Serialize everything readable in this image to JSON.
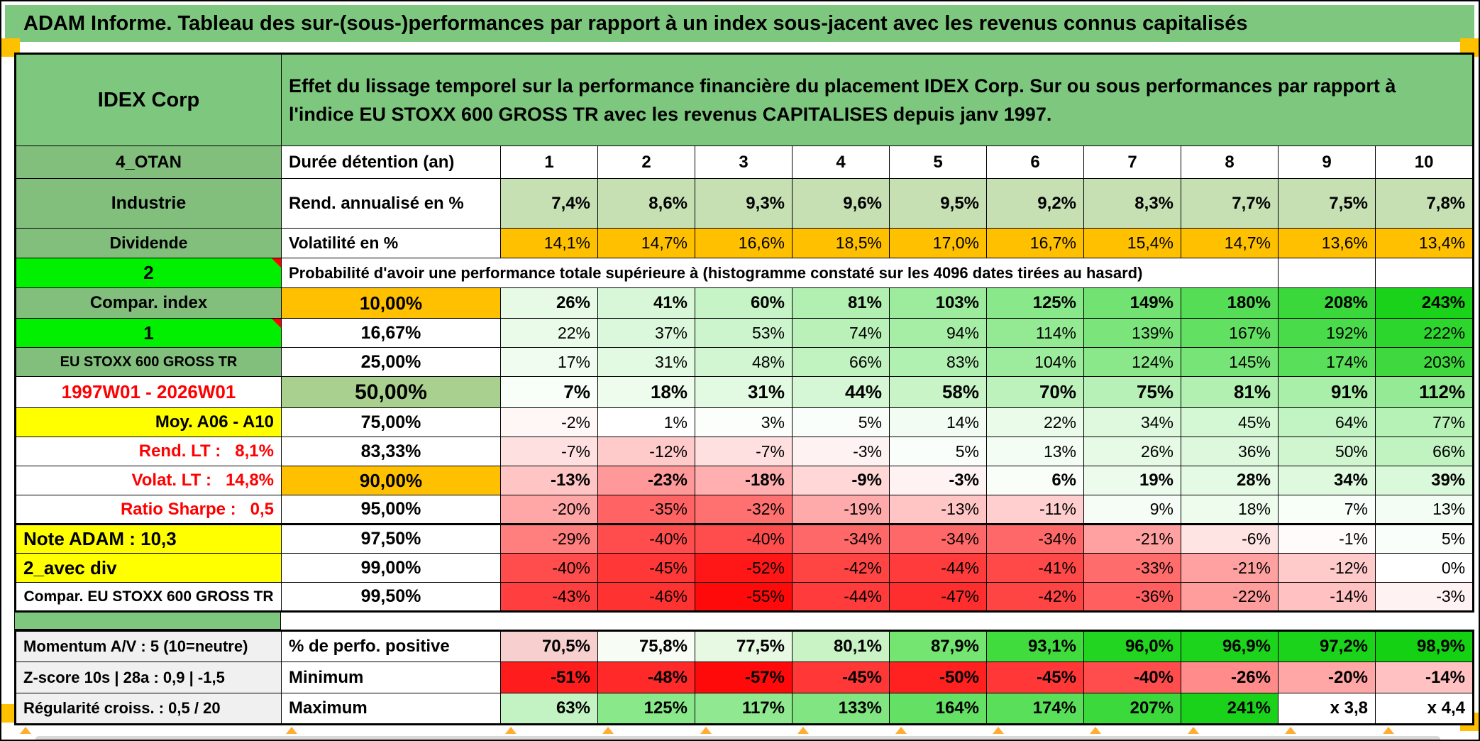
{
  "title_bar": {
    "text": "ADAM Informe. Tableau des sur-(sous-)performances par rapport à un index sous-jacent avec les revenus connus capitalisés"
  },
  "header": {
    "name": "IDEX Corp",
    "description": "Effet du lissage temporel sur la performance financière du placement IDEX Corp. Sur ou sous performances par rapport à l'indice EU STOXX 600 GROSS TR avec les revenus CAPITALISES depuis janv 1997."
  },
  "columns": [
    "1",
    "2",
    "3",
    "4",
    "5",
    "6",
    "7",
    "8",
    "9",
    "10"
  ],
  "duree_row": {
    "label": "4_OTAN",
    "metric": "Durée détention (an)"
  },
  "rend_row": {
    "label": "Industrie",
    "metric": "Rend. annualisé en %",
    "values": [
      "7,4%",
      "8,6%",
      "9,3%",
      "9,6%",
      "9,5%",
      "9,2%",
      "8,3%",
      "7,7%",
      "7,5%",
      "7,8%"
    ],
    "cell_bg": "#C6E0B4"
  },
  "volat_row": {
    "label": "Dividende",
    "metric": "Volatilité en %",
    "values": [
      "14,1%",
      "14,7%",
      "16,6%",
      "18,5%",
      "17,0%",
      "16,7%",
      "15,4%",
      "14,7%",
      "13,6%",
      "13,4%"
    ],
    "cell_bg": "#FFC000"
  },
  "proba_row": {
    "label": "2",
    "text": "Probabilité d'avoir une performance totale supérieure à (histogramme constaté sur les 4096 dates tirées au hasard)"
  },
  "matrix_rows": [
    {
      "label": "Compar. index",
      "label_bg": "#82BF7D",
      "label_color": "#000000",
      "label_align": "center",
      "label_size": 24,
      "marker": false,
      "threshold": "10,00%",
      "threshold_bg": "#FFC000",
      "threshold_size": 26,
      "bold": true,
      "values": [
        "26%",
        "41%",
        "60%",
        "81%",
        "103%",
        "125%",
        "149%",
        "180%",
        "208%",
        "243%"
      ],
      "colors": [
        "#E6FAE6",
        "#D8F7D8",
        "#C6F4C6",
        "#B2F0B2",
        "#9DEC9D",
        "#89E889",
        "#72E372",
        "#55DE55",
        "#3AD83A",
        "#19D219"
      ]
    },
    {
      "label": "1",
      "label_bg": "#00F000",
      "label_color": "#000000",
      "label_align": "center",
      "label_size": 26,
      "marker": true,
      "threshold": "16,67%",
      "threshold_bg": "#FFFFFF",
      "threshold_size": 25,
      "bold": false,
      "values": [
        "22%",
        "37%",
        "53%",
        "74%",
        "94%",
        "114%",
        "139%",
        "167%",
        "192%",
        "222%"
      ],
      "colors": [
        "#EAFBEA",
        "#DCF8DC",
        "#CDF5CD",
        "#B9F1B9",
        "#A6EEA6",
        "#93EA93",
        "#7BE57B",
        "#61E061",
        "#49DB49",
        "#2DD62D"
      ]
    },
    {
      "label": "EU STOXX 600 GROSS TR",
      "label_bg": "#82BF7D",
      "label_color": "#000000",
      "label_align": "center",
      "label_size": 20,
      "marker": false,
      "threshold": "25,00%",
      "threshold_bg": "#FFFFFF",
      "threshold_size": 25,
      "bold": false,
      "values": [
        "17%",
        "31%",
        "48%",
        "66%",
        "83%",
        "104%",
        "124%",
        "145%",
        "174%",
        "203%"
      ],
      "colors": [
        "#EFFCEF",
        "#E2F9E2",
        "#D1F6D1",
        "#C0F3C0",
        "#B0F0B0",
        "#9DEC9D",
        "#8AE88A",
        "#76E476",
        "#5ADF5A",
        "#3FD93F"
      ]
    },
    {
      "label": "1997W01 - 2026W01",
      "label_bg": "#FFFFFF",
      "label_color": "#FF0000",
      "label_align": "center",
      "label_size": 26,
      "marker": false,
      "threshold": "50,00%",
      "threshold_bg": "#A9D08F",
      "threshold_size": 30,
      "bold": true,
      "size": 26,
      "values": [
        "7%",
        "18%",
        "31%",
        "44%",
        "58%",
        "70%",
        "75%",
        "81%",
        "91%",
        "112%"
      ],
      "colors": [
        "#F8FEF8",
        "#EEFCEE",
        "#E2F9E2",
        "#D5F7D5",
        "#C8F4C8",
        "#BDF2BD",
        "#B8F1B8",
        "#B2F0B2",
        "#A9EEA9",
        "#95EA95"
      ]
    },
    {
      "label": "Moy. A06 - A10",
      "label_bg": "#FFFF00",
      "label_color": "#000000",
      "label_align": "right",
      "label_size": 24,
      "marker": false,
      "threshold": "75,00%",
      "threshold_bg": "#FFFFFF",
      "threshold_size": 25,
      "bold": false,
      "values": [
        "-2%",
        "1%",
        "3%",
        "5%",
        "14%",
        "22%",
        "34%",
        "45%",
        "64%",
        "77%"
      ],
      "colors": [
        "#FFF6F6",
        "#FEFFFE",
        "#FCFEFC",
        "#FAFEFA",
        "#F2FCF2",
        "#EAFBEA",
        "#DFF9DF",
        "#D4F7D4",
        "#C2F3C2",
        "#B6F1B6"
      ]
    },
    {
      "label": "Rend. LT :   8,1%",
      "label_bg": "#FFFFFF",
      "label_color": "#FF0000",
      "label_align": "right",
      "label_size": 24,
      "marker": false,
      "threshold": "83,33%",
      "threshold_bg": "#FFFFFF",
      "threshold_size": 25,
      "bold": false,
      "values": [
        "-7%",
        "-12%",
        "-7%",
        "-3%",
        "5%",
        "13%",
        "26%",
        "36%",
        "50%",
        "66%"
      ],
      "colors": [
        "#FFE0E0",
        "#FFCACA",
        "#FFE0E0",
        "#FFF2F2",
        "#FAFEFA",
        "#F3FDF3",
        "#E6FAE6",
        "#DDF8DD",
        "#D0F6D0",
        "#C0F3C0"
      ]
    },
    {
      "label": "Volat. LT :   14,8%",
      "label_bg": "#FFFFFF",
      "label_color": "#FF0000",
      "label_align": "right",
      "label_size": 24,
      "marker": false,
      "threshold": "90,00%",
      "threshold_bg": "#FFC000",
      "threshold_size": 26,
      "bold": true,
      "values": [
        "-13%",
        "-23%",
        "-18%",
        "-9%",
        "-3%",
        "6%",
        "19%",
        "28%",
        "34%",
        "39%"
      ],
      "colors": [
        "#FFC5C5",
        "#FF9999",
        "#FFAFAF",
        "#FFD7D7",
        "#FFF2F2",
        "#F9FEF9",
        "#EDFBED",
        "#E5FAE5",
        "#DFF9DF",
        "#DAF8DA"
      ]
    },
    {
      "label": "Ratio Sharpe :   0,5",
      "label_bg": "#FFFFFF",
      "label_color": "#FF0000",
      "label_align": "right",
      "label_size": 24,
      "marker": false,
      "threshold": "95,00%",
      "threshold_bg": "#FFFFFF",
      "threshold_size": 25,
      "bold": false,
      "values": [
        "-20%",
        "-35%",
        "-32%",
        "-19%",
        "-13%",
        "-11%",
        "9%",
        "18%",
        "7%",
        "13%"
      ],
      "colors": [
        "#FFA6A6",
        "#FF6363",
        "#FF7070",
        "#FFAAAA",
        "#FFC5C5",
        "#FFCECE",
        "#F6FDF6",
        "#EEFCEE",
        "#F8FEF8",
        "#F3FDF3"
      ]
    },
    {
      "label": "Note ADAM : 10,3",
      "label_bg": "#FFFF00",
      "label_color": "#000000",
      "label_align": "left",
      "label_size": 26,
      "marker": false,
      "threshold": "97,50%",
      "threshold_bg": "#FFFFFF",
      "threshold_size": 25,
      "bold": false,
      "thick_top": true,
      "values": [
        "-29%",
        "-40%",
        "-40%",
        "-34%",
        "-34%",
        "-34%",
        "-21%",
        "-6%",
        "-1%",
        "5%"
      ],
      "colors": [
        "#FF7E7E",
        "#FF4D4D",
        "#FF4D4D",
        "#FF6868",
        "#FF6868",
        "#FF6868",
        "#FFA1A1",
        "#FFE4E4",
        "#FFFBFB",
        "#FAFEFA"
      ]
    },
    {
      "label": "2_avec div",
      "label_bg": "#FFFF00",
      "label_color": "#000000",
      "label_align": "left",
      "label_size": 26,
      "marker": false,
      "threshold": "99,00%",
      "threshold_bg": "#FFFFFF",
      "threshold_size": 25,
      "bold": false,
      "values": [
        "-40%",
        "-45%",
        "-52%",
        "-42%",
        "-44%",
        "-41%",
        "-33%",
        "-21%",
        "-12%",
        "0%"
      ],
      "colors": [
        "#FF4D4D",
        "#FF3737",
        "#FF1717",
        "#FF4444",
        "#FF3B3B",
        "#FF4848",
        "#FF6C6C",
        "#FFA1A1",
        "#FFCACA",
        "#FFFFFF"
      ]
    },
    {
      "label": "Compar. EU STOXX 600 GROSS TR",
      "label_bg": "#FFFFFF",
      "label_color": "#000000",
      "label_align": "center",
      "label_size": 21,
      "marker": false,
      "threshold": "99,50%",
      "threshold_bg": "#FFFFFF",
      "threshold_size": 25,
      "bold": false,
      "values": [
        "-43%",
        "-46%",
        "-55%",
        "-44%",
        "-47%",
        "-42%",
        "-36%",
        "-22%",
        "-14%",
        "-3%"
      ],
      "colors": [
        "#FF3F3F",
        "#FF3232",
        "#FF0A0A",
        "#FF3B3B",
        "#FF2E2E",
        "#FF4444",
        "#FF5F5F",
        "#FF9D9D",
        "#FFC1C1",
        "#FFF2F2"
      ]
    }
  ],
  "bottom_rows": [
    {
      "label": "Momentum A/V : 5 (10=neutre)",
      "metric": "% de perfo. positive",
      "values": [
        "70,5%",
        "75,8%",
        "77,5%",
        "80,1%",
        "87,9%",
        "93,1%",
        "96,0%",
        "96,9%",
        "97,2%",
        "98,9%"
      ],
      "colors": [
        "#F8CFCF",
        "#F7FCF5",
        "#E7F8E3",
        "#C9F2C5",
        "#74E570",
        "#40DC3E",
        "#22D520",
        "#1DD41C",
        "#1BD31A",
        "#14D213"
      ]
    },
    {
      "label": "Z-score 10s | 28a : 0,9 | -1,5",
      "metric": "Minimum",
      "values": [
        "-51%",
        "-48%",
        "-57%",
        "-45%",
        "-50%",
        "-45%",
        "-40%",
        "-26%",
        "-20%",
        "-14%"
      ],
      "colors": [
        "#FF1C1C",
        "#FF2929",
        "#FF0A0A",
        "#FF3737",
        "#FF2020",
        "#FF3737",
        "#FF4D4D",
        "#FF8B8B",
        "#FFA6A6",
        "#FFC1C1"
      ]
    },
    {
      "label": "Régularité croiss. : 0,5 / 20",
      "metric": "Maximum",
      "values": [
        "63%",
        "125%",
        "117%",
        "133%",
        "164%",
        "174%",
        "207%",
        "241%",
        "x 3,8",
        "x 4,4"
      ],
      "colors": [
        "#C3F3C3",
        "#89E889",
        "#90E990",
        "#81E681",
        "#64E164",
        "#5ADF5A",
        "#3BD93B",
        "#1BD21B",
        "#FFFFFF",
        "#FFFFFF"
      ]
    }
  ],
  "colors": {
    "title_green": "#7DC87E",
    "label_green": "#82BF7D",
    "bright_green": "#00F000",
    "orange": "#FFC000",
    "yellow": "#FFFF00",
    "sage_green": "#C6E0B4",
    "mid_green": "#A9D08F",
    "red_text": "#FF0000",
    "gray_label_bg": "#F0F0F0",
    "accent_square": "#FFC000"
  }
}
